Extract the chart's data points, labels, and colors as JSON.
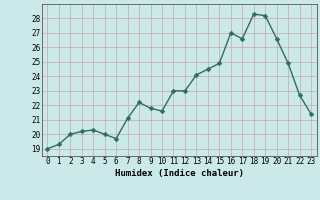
{
  "x": [
    0,
    1,
    2,
    3,
    4,
    5,
    6,
    7,
    8,
    9,
    10,
    11,
    12,
    13,
    14,
    15,
    16,
    17,
    18,
    19,
    20,
    21,
    22,
    23
  ],
  "y": [
    19.0,
    19.3,
    20.0,
    20.2,
    20.3,
    20.0,
    19.7,
    21.1,
    22.2,
    21.8,
    21.6,
    23.0,
    23.0,
    24.1,
    24.5,
    24.9,
    27.0,
    26.6,
    28.3,
    28.2,
    26.6,
    24.9,
    22.7,
    21.4
  ],
  "line_color": "#2e6e5e",
  "marker_color": "#2e6e5e",
  "bg_color": "#cce9e9",
  "grid_color": "#b8d8d8",
  "xlabel": "Humidex (Indice chaleur)",
  "xlim": [
    -0.5,
    23.5
  ],
  "ylim": [
    18.5,
    29.0
  ],
  "yticks": [
    19,
    20,
    21,
    22,
    23,
    24,
    25,
    26,
    27,
    28
  ],
  "xticks": [
    0,
    1,
    2,
    3,
    4,
    5,
    6,
    7,
    8,
    9,
    10,
    11,
    12,
    13,
    14,
    15,
    16,
    17,
    18,
    19,
    20,
    21,
    22,
    23
  ],
  "tick_fontsize": 5.5,
  "label_fontsize": 6.5,
  "linewidth": 1.0,
  "markersize": 2.5
}
